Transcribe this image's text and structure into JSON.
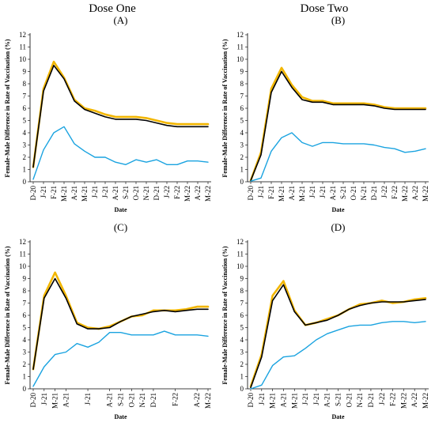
{
  "column_titles": [
    "Dose One",
    "Dose Two"
  ],
  "colors": {
    "female": "#F2B600",
    "male": "#000000",
    "difference": "#1AA3E0",
    "grid": "#bfbfbf"
  },
  "chart_data": [
    {
      "type": "line",
      "panel_label": "A",
      "title": "(A)",
      "xlabel": "Date",
      "ylabel": "Female-Male Difference in Rate of Vaccination (%)",
      "ylim": [
        0,
        12
      ],
      "y_ticks": [
        0,
        1,
        2,
        3,
        4,
        5,
        6,
        7,
        8,
        9,
        10,
        11,
        12
      ],
      "grid": false,
      "categories": [
        "D-20",
        "J-21",
        "F-21",
        "M-21",
        "A-21",
        "M-21",
        "J-21",
        "J-21",
        "A-21",
        "S-21",
        "O-21",
        "N-21",
        "D-21",
        "J-22",
        "F-22",
        "M-22",
        "A-22",
        "M-22"
      ],
      "x_tick_labels": [
        "D-20",
        "J-21",
        "F-21",
        "M-21",
        "A-21",
        "M-21",
        "J-21",
        "J-21",
        "A-21",
        "S-21",
        "O-21",
        "N-21",
        "D-21",
        "J-22",
        "F-22",
        "M-22",
        "A-22",
        "M-22"
      ],
      "series": [
        {
          "values": [
            1.2,
            7.6,
            9.8,
            8.5,
            6.7,
            6.0,
            5.8,
            5.5,
            5.3,
            5.3,
            5.3,
            5.2,
            5.0,
            4.8,
            4.7,
            4.7,
            4.7,
            4.7
          ]
        },
        {
          "values": [
            1.2,
            7.4,
            9.5,
            8.4,
            6.6,
            5.9,
            5.6,
            5.3,
            5.1,
            5.1,
            5.1,
            5.0,
            4.8,
            4.6,
            4.5,
            4.5,
            4.5,
            4.5
          ]
        },
        {
          "values": [
            0.2,
            2.6,
            4.0,
            4.5,
            3.1,
            2.5,
            2.0,
            2.0,
            1.6,
            1.4,
            1.8,
            1.6,
            1.8,
            1.4,
            1.4,
            1.7,
            1.7,
            1.6
          ]
        }
      ]
    },
    {
      "type": "line",
      "panel_label": "B",
      "title": "(B)",
      "xlabel": "Date",
      "ylabel": "Female-Male Difference in Rate of Vaccination (%)",
      "ylim": [
        0,
        12
      ],
      "y_ticks": [
        0,
        1,
        2,
        3,
        4,
        5,
        6,
        7,
        8,
        9,
        10,
        11,
        12
      ],
      "grid": false,
      "categories": [
        "D-20",
        "J-21",
        "F-21",
        "M-21",
        "A-21",
        "M-21",
        "J-21",
        "J-21",
        "A-21",
        "S-21",
        "O-21",
        "N-21",
        "D-21",
        "J-22",
        "F-22",
        "M-22",
        "A-22",
        "M-22"
      ],
      "x_tick_labels": [
        "D-20",
        "J-21",
        "F-21",
        "M-21",
        "A-21",
        "M-21",
        "J-21",
        "J-21",
        "A-21",
        "S-21",
        "O-21",
        "N-21",
        "D-21",
        "J-22",
        "F-22",
        "M-22",
        "A-22",
        "M-22"
      ],
      "series": [
        {
          "values": [
            0.1,
            2.4,
            7.6,
            9.3,
            7.9,
            6.9,
            6.6,
            6.6,
            6.4,
            6.4,
            6.4,
            6.4,
            6.3,
            6.1,
            6.0,
            6.0,
            6.0,
            6.0
          ]
        },
        {
          "values": [
            0.1,
            2.2,
            7.3,
            9.0,
            7.7,
            6.7,
            6.5,
            6.5,
            6.3,
            6.3,
            6.3,
            6.3,
            6.2,
            6.0,
            5.9,
            5.9,
            5.9,
            5.9
          ]
        },
        {
          "values": [
            0.05,
            0.3,
            2.5,
            3.6,
            4.0,
            3.2,
            2.9,
            3.2,
            3.2,
            3.1,
            3.1,
            3.1,
            3.0,
            2.8,
            2.7,
            2.4,
            2.5,
            2.7
          ]
        }
      ]
    },
    {
      "type": "line",
      "panel_label": "C",
      "title": "(C)",
      "xlabel": "Date",
      "ylabel": "Female-Male Difference in Rate of Vaccination (%)",
      "ylim": [
        0,
        12
      ],
      "y_ticks": [
        0,
        1,
        2,
        3,
        4,
        5,
        6,
        7,
        8,
        9,
        10,
        11,
        12
      ],
      "grid": false,
      "categories": [
        "D-20",
        "J-21",
        "M-21",
        "A-21",
        "M-21",
        "J-21",
        "J-21",
        "A-21",
        "S-21",
        "O-21",
        "N-21",
        "D-21",
        "J-22",
        "F-22",
        "M-22",
        "A-22",
        "M-22"
      ],
      "x_tick_labels": [
        "D-20",
        "J-21",
        "M-21",
        "A-21",
        "J-21",
        "A-21",
        "S-21",
        "O-21",
        "N-21",
        "D-21",
        "F-22",
        "A-22",
        "M-22"
      ],
      "x_tick_positions": [
        0,
        1,
        2,
        3,
        5,
        7,
        8,
        9,
        10,
        11,
        13,
        15,
        16
      ],
      "series": [
        {
          "values": [
            1.6,
            7.6,
            9.5,
            7.6,
            5.4,
            5.0,
            4.9,
            5.1,
            5.5,
            5.9,
            6.0,
            6.4,
            6.4,
            6.4,
            6.5,
            6.7,
            6.7
          ]
        },
        {
          "values": [
            1.6,
            7.4,
            9.0,
            7.4,
            5.3,
            4.9,
            4.9,
            5.0,
            5.5,
            5.9,
            6.1,
            6.3,
            6.4,
            6.3,
            6.4,
            6.5,
            6.5
          ]
        },
        {
          "values": [
            0.2,
            1.8,
            2.8,
            3.0,
            3.7,
            3.4,
            3.8,
            4.6,
            4.6,
            4.4,
            4.4,
            4.4,
            4.7,
            4.4,
            4.4,
            4.4,
            4.3
          ]
        }
      ]
    },
    {
      "type": "line",
      "panel_label": "D",
      "title": "(D)",
      "xlabel": "Date",
      "ylabel": "Female-Male Difference in Rate of Vaccination (%)",
      "ylim": [
        0,
        12
      ],
      "y_ticks": [
        0,
        1,
        2,
        3,
        4,
        5,
        6,
        7,
        8,
        9,
        10,
        11,
        12
      ],
      "grid": false,
      "categories": [
        "D-20",
        "J-21",
        "M-21",
        "A-21",
        "M-21",
        "J-21",
        "J-21",
        "A-21",
        "S-21",
        "O-21",
        "N-21",
        "D-21",
        "J-22",
        "F-22",
        "M-22",
        "A-22",
        "M-22"
      ],
      "x_tick_labels": [
        "D-20",
        "J-21",
        "M-21",
        "A-21",
        "M-21",
        "J-21",
        "J-21",
        "A-21",
        "S-21",
        "O-21",
        "N-21",
        "D-21",
        "J-22",
        "F-22",
        "M-22",
        "A-22",
        "M-22"
      ],
      "series": [
        {
          "values": [
            0.2,
            2.8,
            7.6,
            8.8,
            6.4,
            5.2,
            5.4,
            5.7,
            6.0,
            6.5,
            6.9,
            7.0,
            7.2,
            7.0,
            7.1,
            7.3,
            7.4
          ]
        },
        {
          "values": [
            0.1,
            2.6,
            7.2,
            8.5,
            6.3,
            5.2,
            5.4,
            5.6,
            6.0,
            6.5,
            6.8,
            7.0,
            7.1,
            7.1,
            7.1,
            7.2,
            7.3
          ]
        },
        {
          "values": [
            0.0,
            0.3,
            1.9,
            2.6,
            2.7,
            3.3,
            4.0,
            4.5,
            4.8,
            5.1,
            5.2,
            5.2,
            5.4,
            5.5,
            5.5,
            5.4,
            5.5
          ]
        }
      ]
    }
  ]
}
